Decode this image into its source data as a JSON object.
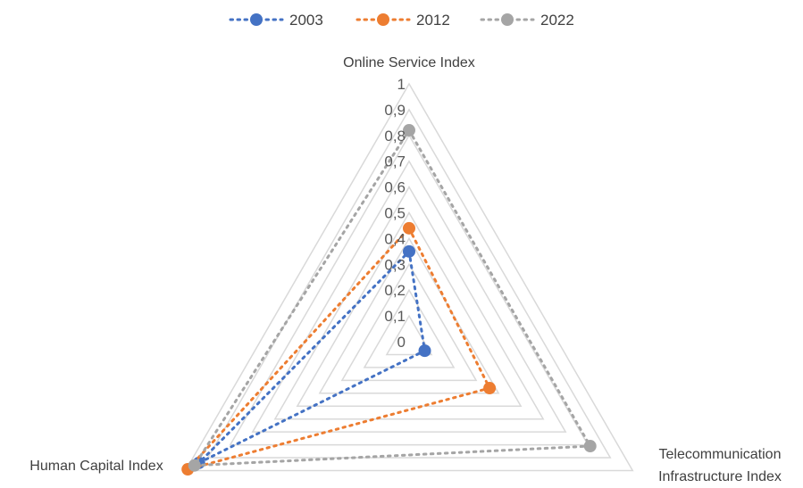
{
  "chart_data": {
    "type": "radar",
    "axes": [
      "Online Service Index",
      "Telecommunication Infrastructure Index",
      "Human Capital Index"
    ],
    "axis_label_lines": [
      [
        "Online Service Index"
      ],
      [
        "Telecommunication",
        "Infrastructure Index"
      ],
      [
        "Human Capital Index"
      ]
    ],
    "ticks": [
      "0",
      "0,1",
      "0,2",
      "0,3",
      "0,4",
      "0,5",
      "0,6",
      "0,7",
      "0,8",
      "0,9",
      "1"
    ],
    "range": [
      0,
      1
    ],
    "grid": true,
    "legend_position": "top",
    "series": [
      {
        "name": "2003",
        "values": [
          0.35,
          0.07,
          0.94
        ],
        "color": "#4472C4"
      },
      {
        "name": "2012",
        "values": [
          0.44,
          0.36,
          0.99
        ],
        "color": "#ED7D31"
      },
      {
        "name": "2022",
        "values": [
          0.82,
          0.81,
          0.96
        ],
        "color": "#A5A5A5"
      }
    ]
  }
}
